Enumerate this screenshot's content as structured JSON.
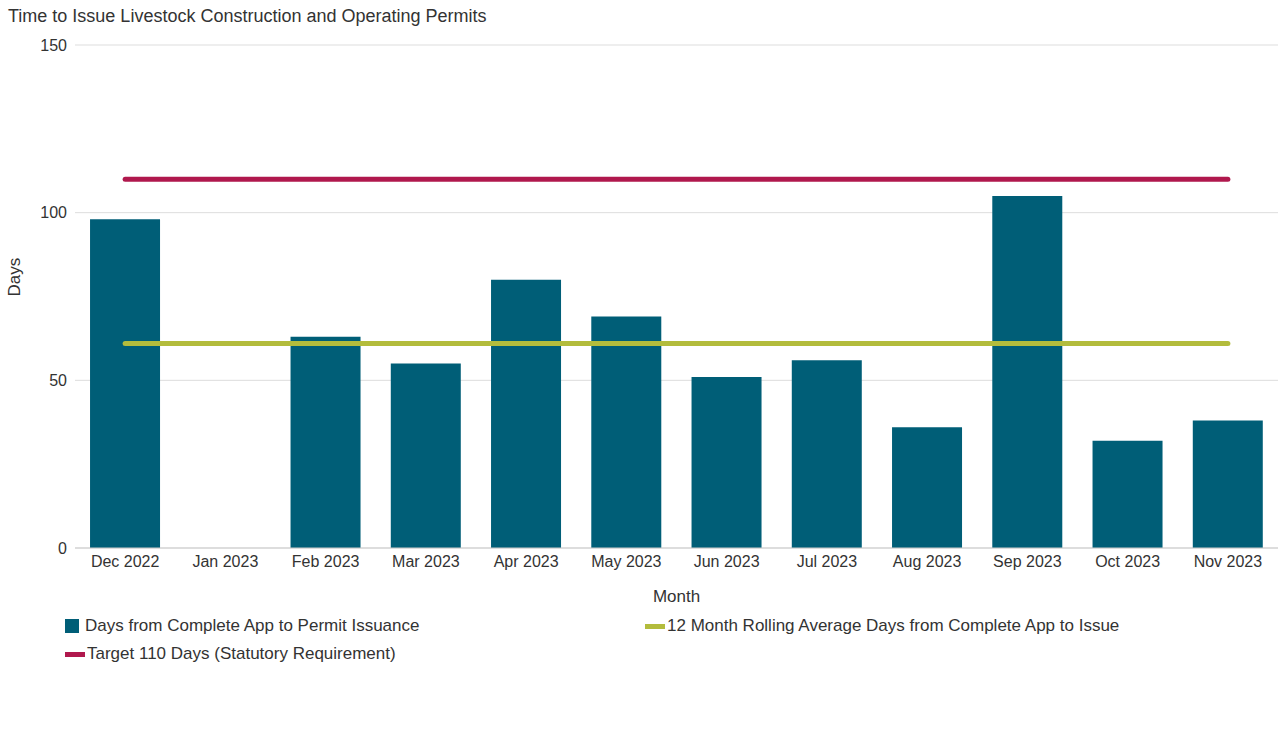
{
  "chart_data": {
    "type": "bar",
    "title": "Time to Issue Livestock Construction and Operating Permits",
    "x_label": "Month",
    "y_label": "Days",
    "categories": [
      "Dec 2022",
      "Jan 2023",
      "Feb 2023",
      "Mar 2023",
      "Apr 2023",
      "May 2023",
      "Jun 2023",
      "Jul 2023",
      "Aug 2023",
      "Sep 2023",
      "Oct 2023",
      "Nov 2023"
    ],
    "series": [
      {
        "name": "Days from Complete App to Permit Issuance",
        "type": "bar",
        "color": "#005e77",
        "values": [
          98,
          null,
          63,
          55,
          80,
          69,
          51,
          56,
          36,
          105,
          32,
          38
        ]
      },
      {
        "name": "12 Month Rolling Average Days from Complete App to Issue",
        "type": "line",
        "color": "#b3bc3c",
        "values": [
          61,
          61,
          61,
          61,
          61,
          61,
          61,
          61,
          61,
          61,
          61,
          61
        ]
      },
      {
        "name": "Target 110 Days (Statutory Requirement)",
        "type": "line",
        "color": "#b0184d",
        "values": [
          110,
          110,
          110,
          110,
          110,
          110,
          110,
          110,
          110,
          110,
          110,
          110
        ]
      }
    ],
    "ylim": [
      0,
      150
    ],
    "yticks": [
      0,
      50,
      100,
      150
    ],
    "grid": true,
    "legend": "bottom"
  }
}
